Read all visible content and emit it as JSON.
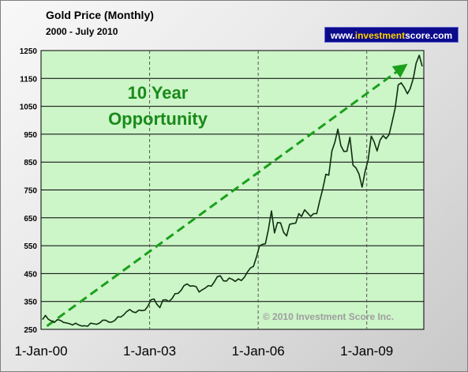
{
  "header": {
    "title": "Gold Price  (Monthly)",
    "subtitle": "2000 - July 2010",
    "site_prefix": "www.",
    "site_highlight": "investment",
    "site_suffix": "score.com"
  },
  "annotation": {
    "line1": "10 Year",
    "line2": "Opportunity",
    "copyright": "© 2010 Investment Score Inc."
  },
  "colors": {
    "plot_background": "#ccf5c8",
    "line": "#102e10",
    "annotation": "#1a8a1a",
    "arrow": "#1aa01a"
  },
  "chart_data": {
    "type": "line",
    "ylim": [
      250,
      1250
    ],
    "yticks": [
      250,
      350,
      450,
      550,
      650,
      750,
      850,
      950,
      1050,
      1150,
      1250
    ],
    "ytick_labels": [
      "250",
      "350",
      "450",
      "550",
      "650",
      "750",
      "850",
      "950",
      "1050",
      "1150",
      "1250"
    ],
    "xlim": [
      "2000-01-01",
      "2010-07-31"
    ],
    "xticks": [
      "2000-01-01",
      "2003-01-01",
      "2006-01-01",
      "2009-01-01"
    ],
    "xtick_labels": [
      "1-Jan-00",
      "1-Jan-03",
      "1-Jan-06",
      "1-Jan-09"
    ],
    "grid": true,
    "trend_arrow": {
      "from": [
        "2000-03-01",
        262
      ],
      "to": [
        "2010-01-01",
        1190
      ]
    },
    "series": [
      {
        "x": [
          "2000-01",
          "2000-02",
          "2000-03",
          "2000-04",
          "2000-05",
          "2000-06",
          "2000-07",
          "2000-08",
          "2000-09",
          "2000-10",
          "2000-11",
          "2000-12",
          "2001-01",
          "2001-02",
          "2001-03",
          "2001-04",
          "2001-05",
          "2001-06",
          "2001-07",
          "2001-08",
          "2001-09",
          "2001-10",
          "2001-11",
          "2001-12",
          "2002-01",
          "2002-02",
          "2002-03",
          "2002-04",
          "2002-05",
          "2002-06",
          "2002-07",
          "2002-08",
          "2002-09",
          "2002-10",
          "2002-11",
          "2002-12",
          "2003-01",
          "2003-02",
          "2003-03",
          "2003-04",
          "2003-05",
          "2003-06",
          "2003-07",
          "2003-08",
          "2003-09",
          "2003-10",
          "2003-11",
          "2003-12",
          "2004-01",
          "2004-02",
          "2004-03",
          "2004-04",
          "2004-05",
          "2004-06",
          "2004-07",
          "2004-08",
          "2004-09",
          "2004-10",
          "2004-11",
          "2004-12",
          "2005-01",
          "2005-02",
          "2005-03",
          "2005-04",
          "2005-05",
          "2005-06",
          "2005-07",
          "2005-08",
          "2005-09",
          "2005-10",
          "2005-11",
          "2005-12",
          "2006-01",
          "2006-02",
          "2006-03",
          "2006-04",
          "2006-05",
          "2006-06",
          "2006-07",
          "2006-08",
          "2006-09",
          "2006-10",
          "2006-11",
          "2006-12",
          "2007-01",
          "2007-02",
          "2007-03",
          "2007-04",
          "2007-05",
          "2007-06",
          "2007-07",
          "2007-08",
          "2007-09",
          "2007-10",
          "2007-11",
          "2007-12",
          "2008-01",
          "2008-02",
          "2008-03",
          "2008-04",
          "2008-05",
          "2008-06",
          "2008-07",
          "2008-08",
          "2008-09",
          "2008-10",
          "2008-11",
          "2008-12",
          "2009-01",
          "2009-02",
          "2009-03",
          "2009-04",
          "2009-05",
          "2009-06",
          "2009-07",
          "2009-08",
          "2009-09",
          "2009-10",
          "2009-11",
          "2009-12",
          "2010-01",
          "2010-02",
          "2010-03",
          "2010-04",
          "2010-05",
          "2010-06",
          "2010-07"
        ],
        "values": [
          285,
          300,
          286,
          280,
          275,
          285,
          282,
          275,
          273,
          270,
          266,
          272,
          266,
          262,
          263,
          261,
          272,
          270,
          268,
          273,
          283,
          283,
          276,
          276,
          282,
          295,
          294,
          302,
          314,
          321,
          313,
          310,
          319,
          317,
          319,
          333,
          356,
          359,
          340,
          328,
          355,
          356,
          350,
          360,
          378,
          379,
          390,
          407,
          413,
          405,
          406,
          403,
          384,
          392,
          398,
          407,
          405,
          420,
          439,
          442,
          424,
          423,
          434,
          429,
          422,
          431,
          425,
          437,
          456,
          470,
          476,
          510,
          550,
          555,
          557,
          610,
          675,
          596,
          633,
          632,
          598,
          585,
          627,
          629,
          631,
          665,
          655,
          679,
          667,
          655,
          665,
          665,
          712,
          754,
          806,
          803,
          889,
          922,
          968,
          909,
          888,
          889,
          939,
          839,
          829,
          807,
          760,
          816,
          858,
          943,
          924,
          890,
          928,
          945,
          934,
          949,
          996,
          1043,
          1127,
          1134,
          1117,
          1095,
          1113,
          1149,
          1205,
          1233,
          1193
        ]
      }
    ]
  }
}
